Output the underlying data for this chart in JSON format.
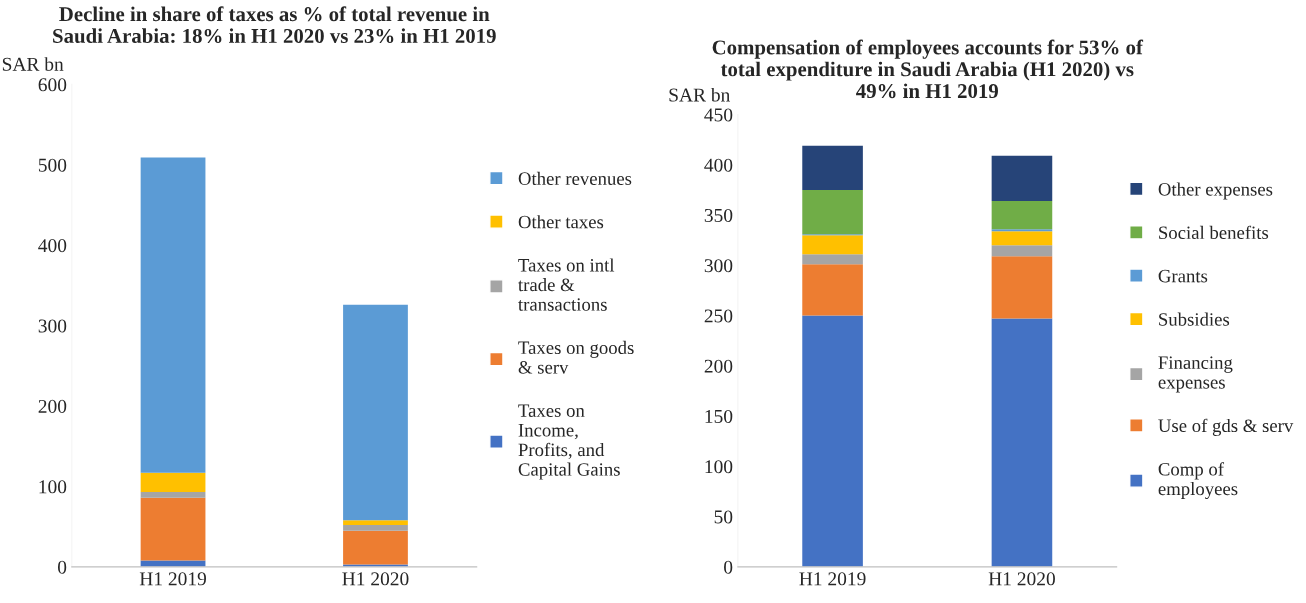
{
  "chart_data": [
    {
      "type": "bar",
      "stacked": true,
      "title": "Decline in share of taxes as % of total revenue in\nSaudi Arabia: 18% in H1 2020 vs 23% in H1 2019",
      "ylabel": "SAR bn",
      "categories": [
        "H1 2019",
        "H1 2020"
      ],
      "ylim": [
        0,
        600
      ],
      "yticks": [
        0,
        100,
        200,
        300,
        400,
        500,
        600
      ],
      "legend": "right",
      "grid": false,
      "series": [
        {
          "name": "Taxes on\nIncome,\nProfits, and\nCapital Gains",
          "color": "#4472c4",
          "values": [
            8,
            3
          ]
        },
        {
          "name": "Taxes on goods\n& serv",
          "color": "#ed7d31",
          "values": [
            78,
            42
          ]
        },
        {
          "name": "Taxes on intl\ntrade &\ntransactions",
          "color": "#a5a5a5",
          "values": [
            7,
            7
          ]
        },
        {
          "name": "Other taxes",
          "color": "#ffc000",
          "values": [
            24,
            6
          ]
        },
        {
          "name": "Other revenues",
          "color": "#5b9bd5",
          "values": [
            392,
            268
          ]
        }
      ]
    },
    {
      "type": "bar",
      "stacked": true,
      "title": "Compensation of employees accounts for 53% of\ntotal expenditure in Saudi Arabia (H1 2020) vs\n49% in H1 2019",
      "ylabel": "SAR bn",
      "categories": [
        "H1 2019",
        "H1 2020"
      ],
      "ylim": [
        0,
        450
      ],
      "yticks": [
        0,
        50,
        100,
        150,
        200,
        250,
        300,
        350,
        400,
        450
      ],
      "legend": "right",
      "grid": false,
      "series": [
        {
          "name": "Comp of\nemployees",
          "color": "#4472c4",
          "values": [
            250,
            247
          ]
        },
        {
          "name": "Use of gds & serv",
          "color": "#ed7d31",
          "values": [
            51,
            62
          ]
        },
        {
          "name": "Financing\nexpenses",
          "color": "#a5a5a5",
          "values": [
            10,
            11
          ]
        },
        {
          "name": "Subsidies",
          "color": "#ffc000",
          "values": [
            19,
            14
          ]
        },
        {
          "name": "Grants",
          "color": "#5b9bd5",
          "values": [
            1,
            2
          ]
        },
        {
          "name": "Social benefits",
          "color": "#70ad47",
          "values": [
            44,
            28
          ]
        },
        {
          "name": "Other expenses",
          "color": "#264478",
          "values": [
            44,
            45
          ]
        }
      ]
    }
  ]
}
